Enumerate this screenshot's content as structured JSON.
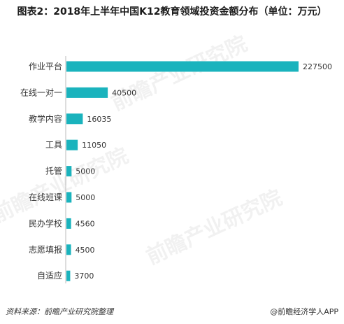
{
  "title": "图表2：2018年上半年中国K12教育领域投资金额分布（单位：万元）",
  "source": "资料来源：前瞻产业研究院整理",
  "brand": "@前瞻经济学人APP",
  "watermark": "前瞻产业研究院",
  "chart_data": {
    "type": "bar",
    "orientation": "horizontal",
    "categories": [
      "作业平台",
      "在线一对一",
      "教学内容",
      "工具",
      "托管",
      "在线班课",
      "民办学校",
      "志愿填报",
      "自适应"
    ],
    "values": [
      227500,
      40500,
      16035,
      11050,
      5000,
      5000,
      4560,
      4500,
      3700
    ],
    "value_labels": [
      "227500",
      "40500",
      "16035",
      "11050",
      "5000",
      "5000",
      "4560",
      "4500",
      "3700"
    ],
    "xlim": [
      0,
      227500
    ],
    "bar_color": "#1ab3bd",
    "grid": false
  }
}
